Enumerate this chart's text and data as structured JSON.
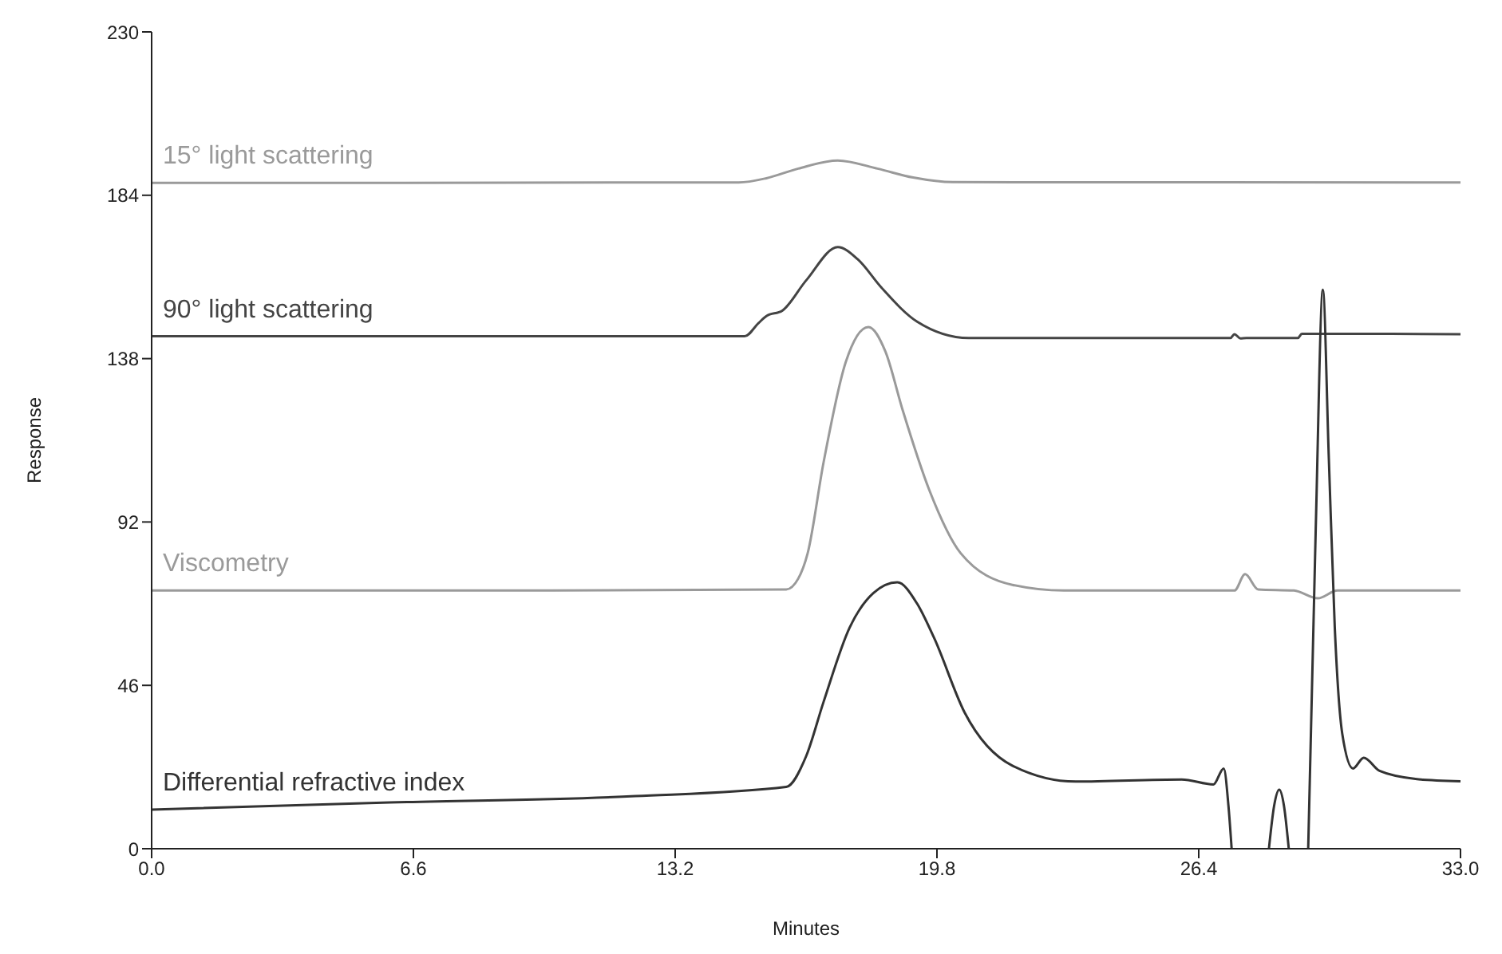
{
  "chart_data": {
    "type": "line",
    "xlabel": "Minutes",
    "ylabel": "Response",
    "xlim": [
      0,
      33
    ],
    "xticks": [
      {
        "value": 0,
        "label": "0.0"
      },
      6.6,
      13.2,
      19.8,
      26.4,
      {
        "value": 33,
        "label": "33.0"
      }
    ],
    "ylim": [
      0,
      230
    ],
    "yticks": [
      0,
      46,
      92,
      138,
      184,
      230
    ],
    "marker": "none",
    "line_style": "solid",
    "series": [
      {
        "name": "15° light scattering",
        "color": "#9a9a9a",
        "x": [
          0,
          6,
          12,
          14.8,
          15.5,
          16.3,
          17.3,
          18.3,
          19.2,
          20.2,
          33
        ],
        "values": [
          187.5,
          187.5,
          187.6,
          187.6,
          188.8,
          191.5,
          193.8,
          191.5,
          189,
          187.7,
          187.6
        ]
      },
      {
        "name": "90° light scattering",
        "color": "#444444",
        "x": [
          0,
          10,
          14.95,
          15.3,
          15.5,
          15.9,
          16.5,
          17.3,
          17.8,
          18.4,
          19.3,
          20.6,
          27.2,
          27.3,
          27.45,
          27.6,
          28.9,
          29,
          33
        ],
        "values": [
          144.3,
          144.3,
          144.3,
          148,
          150,
          151.5,
          160,
          169.4,
          166,
          158,
          148.4,
          143.8,
          143.8,
          144.9,
          143.7,
          143.8,
          143.8,
          145,
          144.9
        ]
      },
      {
        "name": "Viscometry",
        "color": "#9a9a9a",
        "x": [
          0,
          10,
          16,
          16.3,
          16.54,
          16.94,
          17.5,
          18.07,
          18.5,
          18.93,
          19.6,
          20.4,
          21.7,
          23,
          27.3,
          27.57,
          27.9,
          28.8,
          29.4,
          29.9,
          33
        ],
        "values": [
          72.7,
          72.7,
          73,
          76,
          83.2,
          108.7,
          137,
          146.9,
          140,
          123.7,
          101.2,
          83.2,
          74.3,
          72.7,
          72.7,
          77.3,
          73,
          72.7,
          70.5,
          72.7,
          72.7
        ]
      },
      {
        "name": "Differential refractive index",
        "color": "#333333",
        "x": [
          0,
          6,
          12.2,
          16,
          16.5,
          16.94,
          17.6,
          18.2,
          18.8,
          19.3,
          19.73,
          20.5,
          21.7,
          23.3,
          25.97,
          26.77,
          27.03,
          27.15,
          27.23,
          27.7,
          28.17,
          28.3,
          28.43,
          28.55,
          28.67,
          28.9,
          29.16,
          29.35,
          29.53,
          29.68,
          29.83,
          30.02,
          30.29,
          30.56,
          30.96,
          31.9,
          33
        ],
        "values": [
          11,
          13,
          14.8,
          17.4,
          26,
          41.3,
          62.3,
          72,
          75,
          69,
          59.3,
          38.3,
          23.4,
          18.9,
          19.5,
          18.1,
          22.6,
          12,
          0,
          null,
          0,
          12,
          16.6,
          12,
          0,
          null,
          0,
          90,
          157.4,
          110,
          62.3,
          32.3,
          22.6,
          25.6,
          21.9,
          19.6,
          19
        ]
      }
    ]
  }
}
